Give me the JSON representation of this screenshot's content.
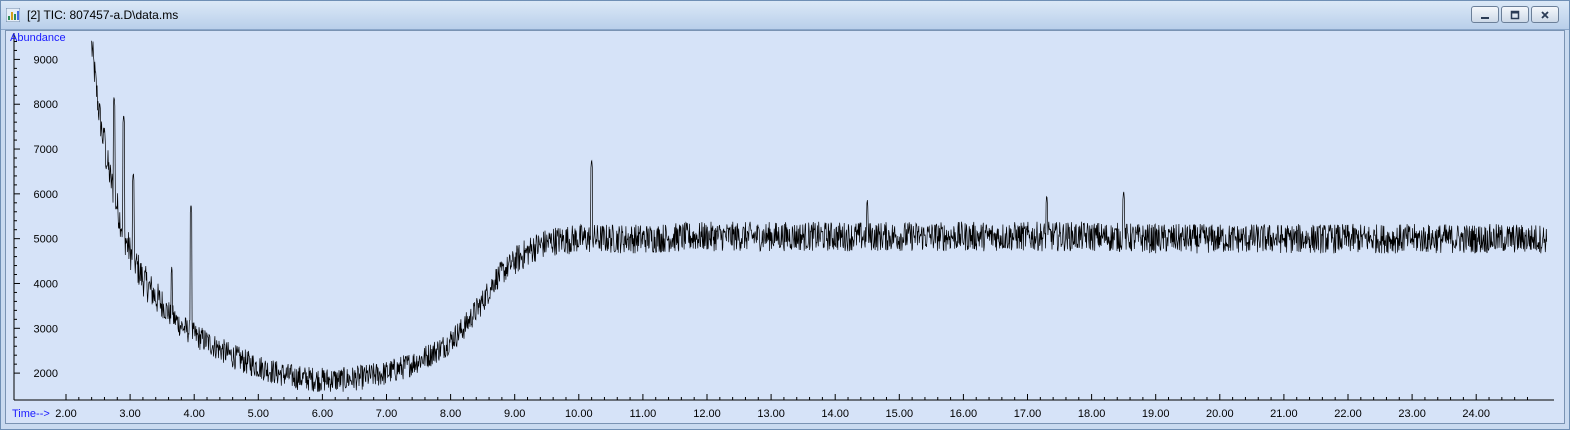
{
  "window": {
    "title": "[2] TIC: 807457-a.D\\data.ms",
    "buttons": [
      "minimize",
      "restore",
      "close"
    ]
  },
  "colors": {
    "plot_background": "#d6e3f8",
    "trace": "#000000",
    "axis_label": "#1a1aff"
  },
  "chart_data": {
    "type": "line",
    "title": "",
    "xlabel": "Time-->",
    "ylabel": "Abundance",
    "xlim": [
      2.0,
      25.2
    ],
    "ylim": [
      1400,
      9500
    ],
    "x_ticks": [
      "2.00",
      "3.00",
      "4.00",
      "5.00",
      "6.00",
      "7.00",
      "8.00",
      "9.00",
      "10.00",
      "11.00",
      "12.00",
      "13.00",
      "14.00",
      "15.00",
      "16.00",
      "17.00",
      "18.00",
      "19.00",
      "20.00",
      "21.00",
      "22.00",
      "23.00",
      "24.00"
    ],
    "y_ticks": [
      "2000",
      "3000",
      "4000",
      "5000",
      "6000",
      "7000",
      "8000",
      "9000"
    ],
    "grid": false,
    "series": [
      {
        "x": [
          2.4,
          2.5,
          2.6,
          2.7,
          2.8,
          2.9,
          3.0,
          3.2,
          3.4,
          3.6,
          3.8,
          4.0,
          4.2,
          4.5,
          4.8,
          5.0,
          5.3,
          5.6,
          6.0,
          6.3,
          6.6,
          7.0,
          7.3,
          7.6,
          7.9,
          8.2,
          8.5,
          8.7,
          9.0,
          9.3,
          9.6,
          10.0,
          10.5,
          11.0,
          12.0,
          13.0,
          14.0,
          15.0,
          16.0,
          17.0,
          18.0,
          19.0,
          20.0,
          21.0,
          22.0,
          23.0,
          24.0,
          25.1
        ],
        "y": [
          9300,
          8000,
          7000,
          6300,
          5700,
          5100,
          4700,
          4100,
          3700,
          3350,
          3050,
          2850,
          2700,
          2450,
          2250,
          2150,
          2000,
          1900,
          1850,
          1850,
          1900,
          2000,
          2150,
          2350,
          2600,
          3000,
          3600,
          4100,
          4500,
          4800,
          4950,
          5000,
          5000,
          5000,
          5050,
          5050,
          5050,
          5050,
          5050,
          5050,
          5050,
          5000,
          5000,
          5000,
          5000,
          5000,
          5000,
          5000
        ],
        "peaks": [
          {
            "x": 2.6,
            "y": 7500
          },
          {
            "x": 2.75,
            "y": 8200
          },
          {
            "x": 2.9,
            "y": 7800
          },
          {
            "x": 3.05,
            "y": 6500
          },
          {
            "x": 3.65,
            "y": 4400
          },
          {
            "x": 3.95,
            "y": 5800
          },
          {
            "x": 10.2,
            "y": 6800
          },
          {
            "x": 14.5,
            "y": 5900
          },
          {
            "x": 17.3,
            "y": 6000
          },
          {
            "x": 18.5,
            "y": 6100
          }
        ]
      }
    ]
  }
}
